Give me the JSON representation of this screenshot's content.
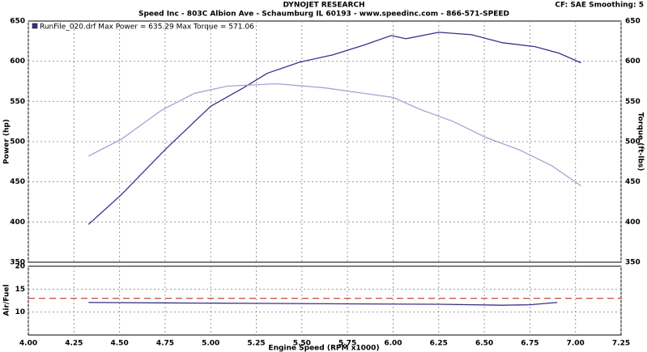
{
  "chart_data": [
    {
      "type": "line",
      "title": "DYNOJET RESEARCH",
      "subtitle": "Speed Inc - 803C Albion Ave - Schaumburg IL 60193 - www.speedinc.com - 866-571-SPEED",
      "corner_note": "CF: SAE  Smoothing: 5",
      "legend": "RunFile_020.drf Max Power = 635.29   Max Torque = 571.06",
      "ylabel": "Power (hp)",
      "y2label": "Torque (ft-lbs)",
      "xlim": [
        4.0,
        7.25
      ],
      "ylim": [
        350,
        650
      ],
      "yticks": [
        350,
        400,
        450,
        500,
        550,
        600,
        650
      ],
      "y2lim": [
        350,
        650
      ],
      "y2ticks": [
        350,
        400,
        450,
        500,
        550,
        600,
        650
      ],
      "grid": true,
      "series": [
        {
          "color": "#33338a",
          "x": [
            4.33,
            4.51,
            4.75,
            5.0,
            5.18,
            5.31,
            5.49,
            5.67,
            5.84,
            5.99,
            6.07,
            6.25,
            6.43,
            6.6,
            6.78,
            6.91,
            7.03
          ],
          "values": [
            397,
            434,
            490,
            544,
            567,
            585,
            599,
            608,
            620,
            632,
            628,
            636,
            633,
            623,
            618,
            610,
            598
          ]
        },
        {
          "color": "#a3a3d6",
          "axis": "y2",
          "x": [
            4.33,
            4.51,
            4.73,
            4.91,
            5.09,
            5.36,
            5.62,
            5.84,
            6.0,
            6.15,
            6.33,
            6.51,
            6.69,
            6.87,
            7.03
          ],
          "values": [
            482,
            503,
            539,
            560,
            569,
            572,
            567,
            560,
            555,
            540,
            525,
            505,
            490,
            470,
            445
          ]
        }
      ]
    },
    {
      "type": "line",
      "xlabel": "Engine Speed (RPM x1000)",
      "ylabel": "Air/Fuel",
      "xlim": [
        4.0,
        7.25
      ],
      "xticks": [
        {
          "value": 4.0,
          "label": "4.00"
        },
        {
          "value": 4.25,
          "label": "4.25"
        },
        {
          "value": 4.5,
          "label": "4.50"
        },
        {
          "value": 4.75,
          "label": "4.75"
        },
        {
          "value": 5.0,
          "label": "5.00"
        },
        {
          "value": 5.25,
          "label": "5.25"
        },
        {
          "value": 5.5,
          "label": "5.50"
        },
        {
          "value": 5.75,
          "label": "5.75"
        },
        {
          "value": 6.0,
          "label": "6.00"
        },
        {
          "value": 6.25,
          "label": "6.25"
        },
        {
          "value": 6.5,
          "label": "6.50"
        },
        {
          "value": 6.75,
          "label": "6.75"
        },
        {
          "value": 7.0,
          "label": "7.00"
        },
        {
          "value": 7.25,
          "label": "7.25"
        }
      ],
      "ylim": [
        5,
        20
      ],
      "yticks": [
        10,
        15,
        20
      ],
      "grid": true,
      "reference": 13,
      "reference_color": "#c0392b",
      "series": [
        {
          "color": "#33338a",
          "x": [
            4.33,
            4.75,
            5.25,
            5.75,
            6.25,
            6.6,
            6.75,
            6.9
          ],
          "values": [
            12.1,
            12.0,
            11.9,
            11.8,
            11.7,
            11.5,
            11.6,
            12.1
          ]
        }
      ]
    }
  ]
}
